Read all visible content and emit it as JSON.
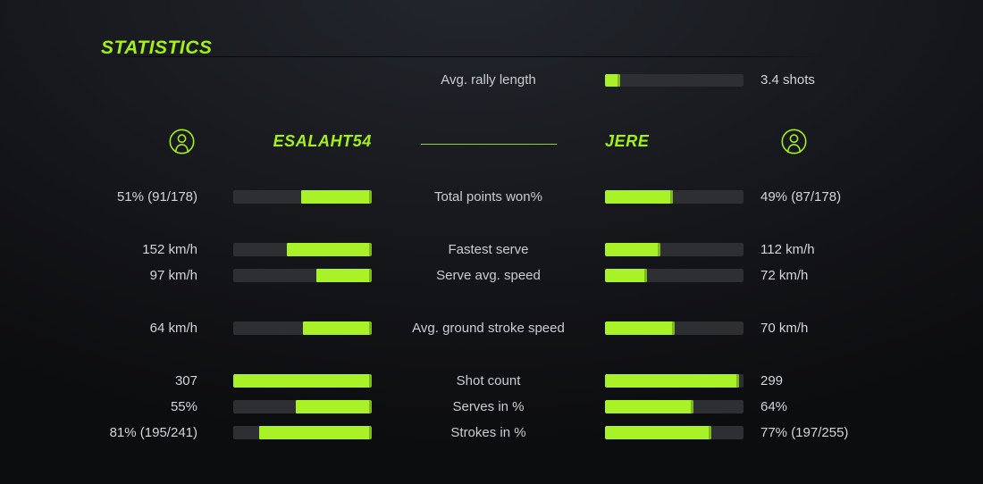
{
  "title": "STATISTICS",
  "colors": {
    "accent_green": "#a4f01a",
    "bar_fill": "#aaf228",
    "bar_fill_edge": "#7eb91b",
    "bar_track": "#2e2f33",
    "text": "#d2d5d9",
    "background": "#15171b"
  },
  "players": {
    "left": {
      "name": "ESALAHT54",
      "icon": "person-icon"
    },
    "right": {
      "name": "JERE",
      "icon": "person-icon"
    }
  },
  "rally": {
    "label": "Avg. rally length",
    "value": "3.4 shots",
    "fill": 0.11
  },
  "stats": [
    {
      "label": "Total points won%",
      "gap_before": true,
      "left": {
        "value": "51% (91/178)",
        "fill": 0.51
      },
      "right": {
        "value": "49% (87/178)",
        "fill": 0.49
      }
    },
    {
      "label": "Fastest serve",
      "gap_before": true,
      "left": {
        "value": "152 km/h",
        "fill": 0.61
      },
      "right": {
        "value": "112 km/h",
        "fill": 0.4
      }
    },
    {
      "label": "Serve avg. speed",
      "gap_before": false,
      "left": {
        "value": "97 km/h",
        "fill": 0.4
      },
      "right": {
        "value": "72 km/h",
        "fill": 0.3
      }
    },
    {
      "label": "Avg. ground stroke speed",
      "gap_before": true,
      "left": {
        "value": "64 km/h",
        "fill": 0.5
      },
      "right": {
        "value": "70 km/h",
        "fill": 0.5
      }
    },
    {
      "label": "Shot count",
      "gap_before": true,
      "left": {
        "value": "307",
        "fill": 1.0
      },
      "right": {
        "value": "299",
        "fill": 0.97
      }
    },
    {
      "label": "Serves in %",
      "gap_before": false,
      "left": {
        "value": "55%",
        "fill": 0.55
      },
      "right": {
        "value": "64%",
        "fill": 0.64
      }
    },
    {
      "label": "Strokes in %",
      "gap_before": false,
      "left": {
        "value": "81% (195/241)",
        "fill": 0.81
      },
      "right": {
        "value": "77% (197/255)",
        "fill": 0.77
      }
    }
  ],
  "chart_data": {
    "type": "bar",
    "orientation": "horizontal-paired",
    "title": "STATISTICS",
    "legend_position": "header",
    "grid": false,
    "shared_metric": {
      "label": "Avg. rally length",
      "value": 3.4,
      "unit": "shots"
    },
    "categories": [
      "Total points won%",
      "Fastest serve",
      "Serve avg. speed",
      "Avg. ground stroke speed",
      "Shot count",
      "Serves in %",
      "Strokes in %"
    ],
    "series": [
      {
        "name": "ESALAHT54",
        "values": [
          51,
          152,
          97,
          64,
          307,
          55,
          81
        ],
        "display_values": [
          "51% (91/178)",
          "152 km/h",
          "97 km/h",
          "64 km/h",
          "307",
          "55%",
          "81% (195/241)"
        ]
      },
      {
        "name": "JERE",
        "values": [
          49,
          112,
          72,
          70,
          299,
          64,
          77
        ],
        "display_values": [
          "49% (87/178)",
          "112 km/h",
          "72 km/h",
          "70 km/h",
          "299",
          "64%",
          "77% (197/255)"
        ]
      }
    ]
  }
}
